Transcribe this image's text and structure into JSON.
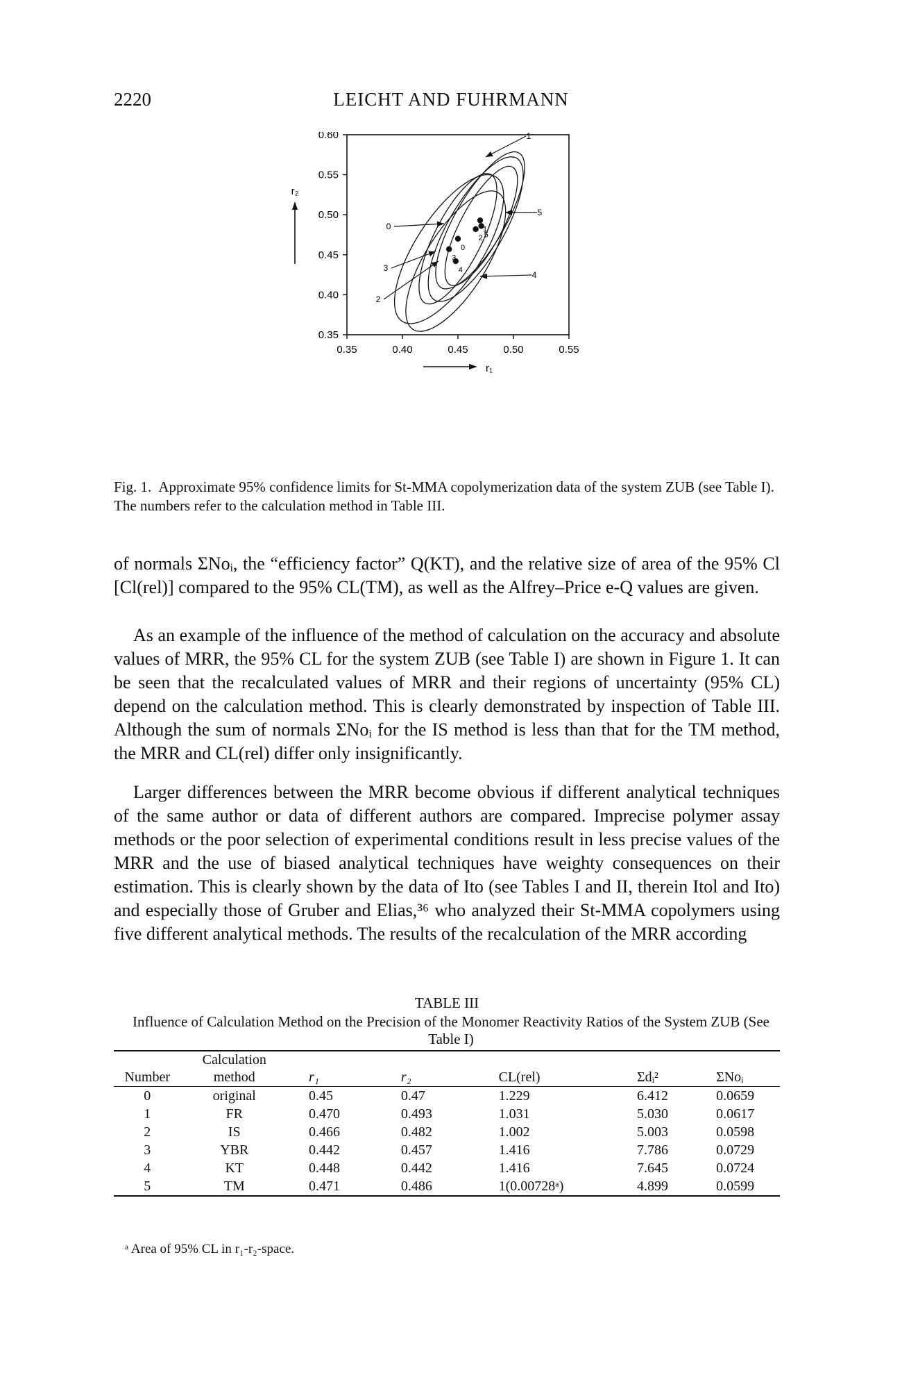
{
  "header": {
    "page_number": "2220",
    "running_head": "LEICHT AND FUHRMANN"
  },
  "figure": {
    "y_axis_label": "r₂",
    "x_axis_label": "r₁",
    "x_ticks": [
      "0.35",
      "0.40",
      "0.45",
      "0.50",
      "0.55"
    ],
    "y_ticks": [
      "0.60",
      "0.55",
      "0.50",
      "0.45",
      "0.40",
      "0.35"
    ],
    "callout_labels": [
      "0",
      "1",
      "2",
      "3",
      "4",
      "5"
    ],
    "caption_label": "Fig. 1.",
    "caption_text": "Approximate 95% confidence limits for St-MMA copolymerization data of the system ZUB (see Table I). The numbers refer to the calculation method in Table III."
  },
  "chart_data": {
    "type": "scatter",
    "xlabel": "r₁",
    "ylabel": "r₂",
    "xlim": [
      0.35,
      0.55
    ],
    "ylim": [
      0.35,
      0.6
    ],
    "series": [
      {
        "points": [
          {
            "label": "0",
            "x": 0.45,
            "y": 0.47
          },
          {
            "label": "1",
            "x": 0.47,
            "y": 0.493
          },
          {
            "label": "2",
            "x": 0.466,
            "y": 0.482
          },
          {
            "label": "3",
            "x": 0.442,
            "y": 0.457
          },
          {
            "label": "4",
            "x": 0.448,
            "y": 0.442
          },
          {
            "label": "5",
            "x": 0.471,
            "y": 0.486
          }
        ]
      }
    ]
  },
  "body": {
    "para1": "of normals ΣNoᵢ, the “efficiency factor” Q(KT), and the relative size of area of the 95% Cl [Cl(rel)] compared to the 95% CL(TM), as well as the Alfrey–Price e-Q values are given.",
    "para2": "As an example of the influence of the method of calculation on the accuracy and absolute values of MRR, the 95% CL for the system ZUB (see Table I) are shown in Figure 1. It can be seen that the recalculated values of MRR and their regions of uncertainty (95% CL) depend on the calculation method. This is clearly demonstrated by inspection of Table III. Although the sum of normals ΣNoᵢ for the IS method is less than that for the TM method, the MRR and CL(rel) differ only insignificantly.",
    "para3": "Larger differences between the MRR become obvious if different analytical techniques of the same author or data of different authors are compared. Imprecise polymer assay methods or the poor selection of experimental conditions result in less precise values of the MRR and the use of biased analytical techniques have weighty consequences on their estimation. This is clearly shown by the data of Ito (see Tables I and II, therein Itol and Ito) and especially those of Gruber and Elias,³⁶ who analyzed their St-MMA copolymers using five different analytical methods. The results of the recalculation of the MRR according"
  },
  "table": {
    "title": "TABLE III",
    "caption": "Influence of Calculation Method on the Precision of the Monomer Reactivity Ratios of the System ZUB (See Table I)",
    "headers": [
      "Number",
      "Calculation method",
      "r₁",
      "r₂",
      "CL(rel)",
      "Σdᵢ²",
      "ΣNoᵢ"
    ],
    "header_top": [
      "",
      "Calculation",
      "",
      "",
      "",
      "",
      ""
    ],
    "header_bottom": [
      "Number",
      "method",
      "r₁",
      "r₂",
      "CL(rel)",
      "Σdᵢ²",
      "ΣNoᵢ"
    ],
    "rows": [
      [
        "0",
        "original",
        "0.45",
        "0.47",
        "1.229",
        "6.412",
        "0.0659"
      ],
      [
        "1",
        "FR",
        "0.470",
        "0.493",
        "1.031",
        "5.030",
        "0.0617"
      ],
      [
        "2",
        "IS",
        "0.466",
        "0.482",
        "1.002",
        "5.003",
        "0.0598"
      ],
      [
        "3",
        "YBR",
        "0.442",
        "0.457",
        "1.416",
        "7.786",
        "0.0729"
      ],
      [
        "4",
        "KT",
        "0.448",
        "0.442",
        "1.416",
        "7.645",
        "0.0724"
      ],
      [
        "5",
        "TM",
        "0.471",
        "0.486",
        "1(0.00728ᵃ)",
        "4.899",
        "0.0599"
      ]
    ],
    "footnote": "ᵃ Area of 95% CL in r₁-r₂-space."
  }
}
